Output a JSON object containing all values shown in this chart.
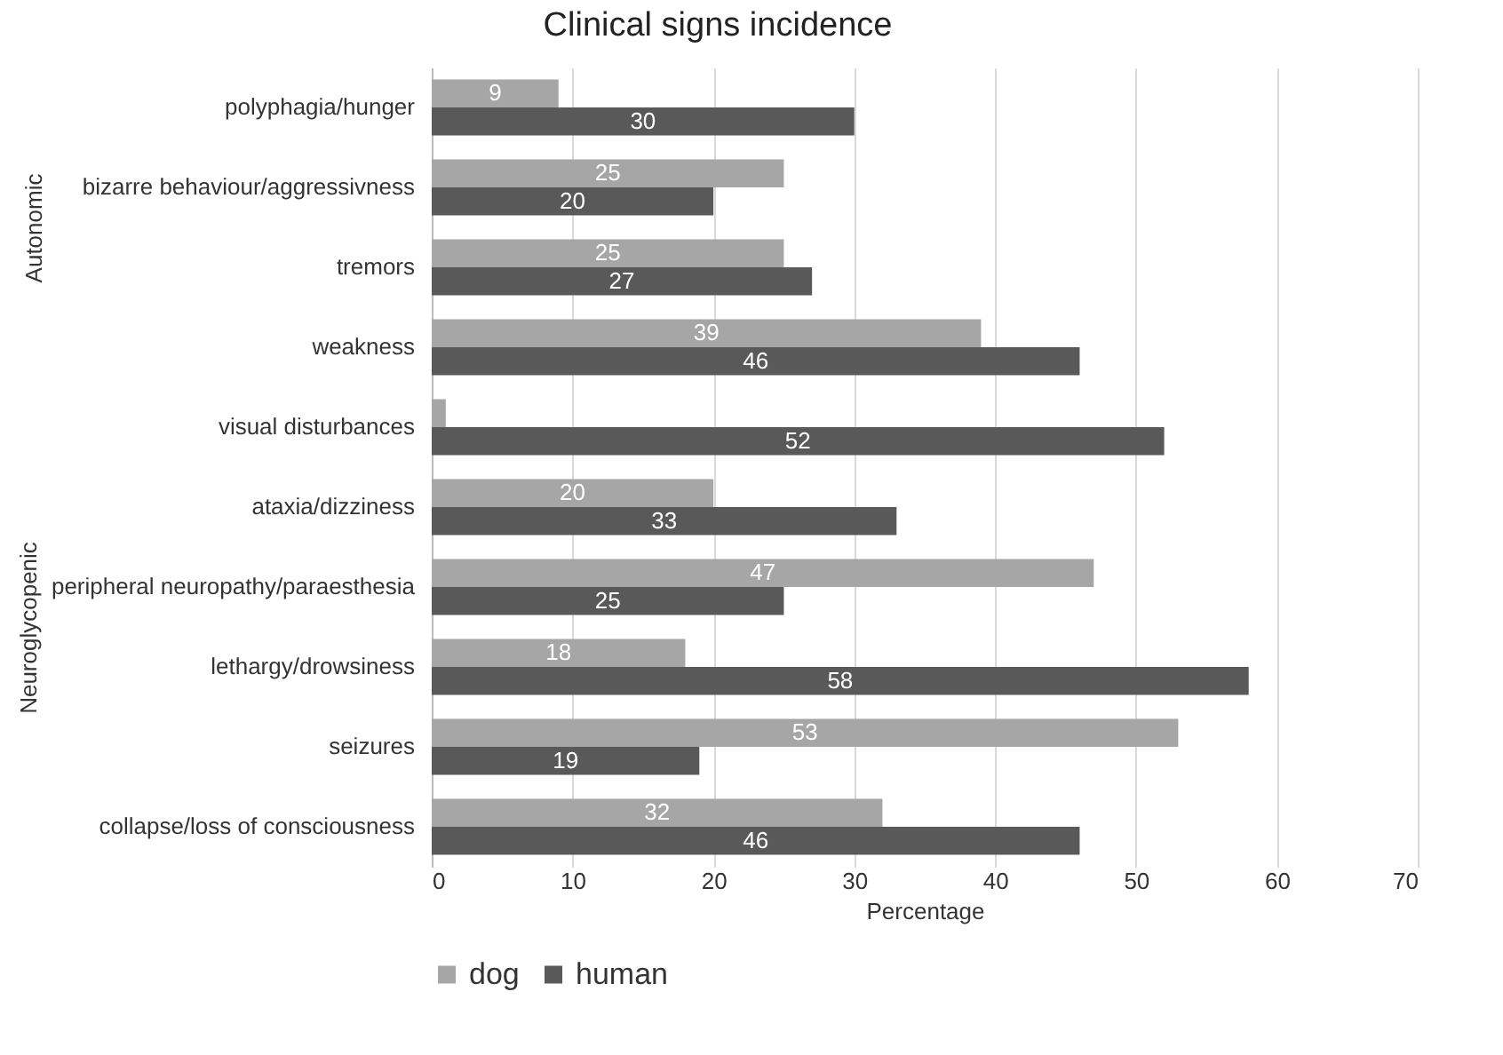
{
  "chart_data": [
    {
      "type": "bar",
      "orientation": "horizontal",
      "title": "Clinical signs incidence",
      "ylabel": "Autonomic",
      "categories": [
        "polyphagia/hunger",
        "bizarre behaviour/aggressivness",
        "tremors",
        "weakness"
      ],
      "series": [
        {
          "color": "#a6a6a6",
          "values": [
            9,
            25,
            25,
            39
          ],
          "value_labels": [
            "9",
            "25",
            "25",
            "39"
          ]
        },
        {
          "color": "#595959",
          "values": [
            30,
            20,
            27,
            46
          ],
          "value_labels": [
            "30",
            "20",
            "27",
            "46"
          ]
        }
      ],
      "xlim": [
        0,
        70
      ],
      "xticks": [
        0,
        10,
        20,
        30,
        40,
        50,
        60,
        70
      ],
      "grid": "x",
      "tick_labels": "y"
    },
    {
      "type": "bar",
      "orientation": "horizontal",
      "ylabel": "Neuroglycopenic",
      "xlabel": "Percentage",
      "categories": [
        "visual disturbances",
        "ataxia/dizziness",
        "peripheral neuropathy/paraesthesia",
        "lethargy/drowsiness",
        "seizures",
        "collapse/loss of consciousness"
      ],
      "series": [
        {
          "name": "dog",
          "color": "#a6a6a6",
          "values": [
            1,
            20,
            47,
            18,
            53,
            32
          ],
          "value_labels": [
            null,
            "20",
            "47",
            "18",
            "53",
            "32"
          ]
        },
        {
          "name": "human",
          "color": "#595959",
          "values": [
            52,
            33,
            25,
            58,
            19,
            46
          ],
          "value_labels": [
            "52",
            "33",
            "25",
            "58",
            "19",
            "46"
          ]
        }
      ],
      "xlim": [
        0,
        70
      ],
      "xticks": [
        0,
        10,
        20,
        30,
        40,
        50,
        60,
        70
      ],
      "grid": "x",
      "legend": "bottom"
    }
  ]
}
